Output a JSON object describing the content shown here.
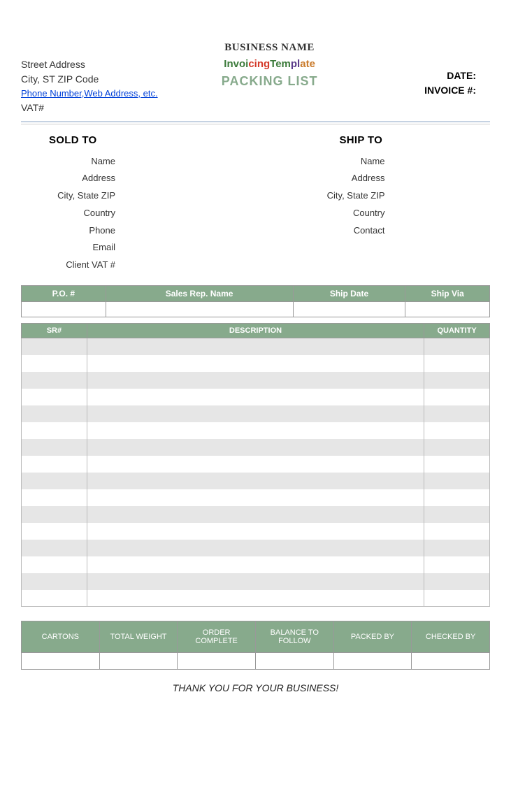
{
  "header": {
    "business_name": "BUSINESS NAME",
    "street": "Street Address",
    "city_line": "City, ST  ZIP Code",
    "contact_link": "Phone Number,Web Address, etc.",
    "vat_label": "VAT#",
    "logo_text": "InvoicingTemplate",
    "title": "PACKING LIST",
    "date_label": "DATE:",
    "invoice_label": "INVOICE #:"
  },
  "sold_to": {
    "title": "SOLD TO",
    "fields": [
      "Name",
      "Address",
      "City, State ZIP",
      "Country",
      "Phone",
      "Email",
      "Client VAT #"
    ]
  },
  "ship_to": {
    "title": "SHIP TO",
    "fields": [
      "Name",
      "Address",
      "City, State ZIP",
      "Country",
      "Contact"
    ]
  },
  "order_table": {
    "headers": [
      "P.O. #",
      "Sales Rep. Name",
      "Ship Date",
      "Ship Via"
    ]
  },
  "items_table": {
    "headers": [
      "SR#",
      "DESCRIPTION",
      "QUANTITY"
    ],
    "row_count": 16,
    "stripe_colors": [
      "#e6e6e6",
      "#ffffff"
    ],
    "header_bg": "#87aa8c",
    "header_fg": "#ffffff"
  },
  "summary_table": {
    "headers": [
      "CARTONS",
      "TOTAL WEIGHT",
      "ORDER COMPLETE",
      "BALANCE TO FOLLOW",
      "PACKED BY",
      "CHECKED BY"
    ],
    "header_bg": "#87aa8c"
  },
  "footer": {
    "thanks": "THANK YOU FOR YOUR BUSINESS!"
  },
  "colors": {
    "accent": "#87aa8c",
    "rule": "#c5d2e2",
    "link": "#0040d8"
  }
}
